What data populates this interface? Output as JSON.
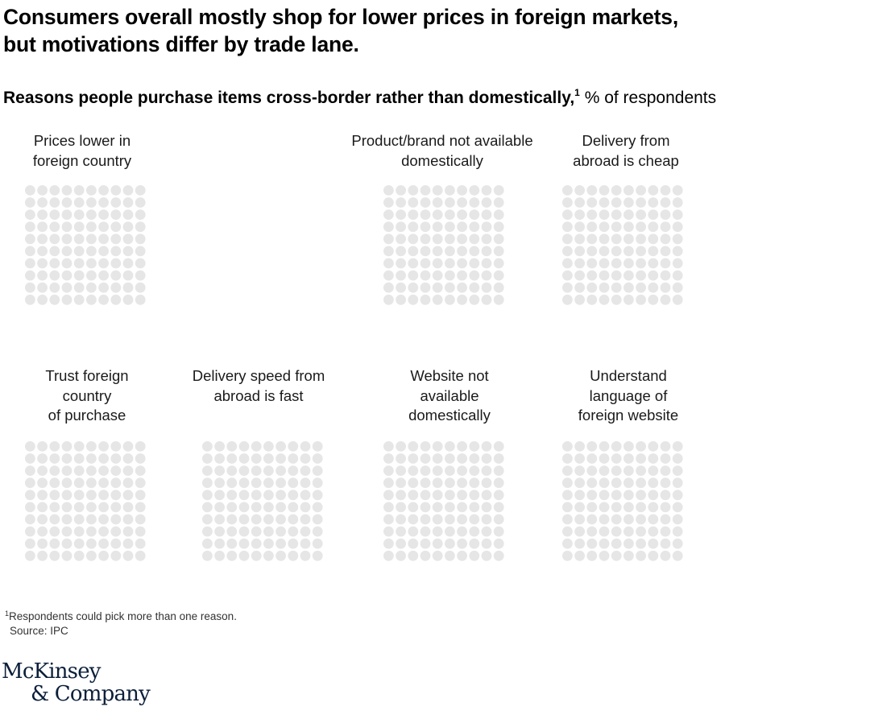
{
  "title_line1": "Consumers overall mostly shop for lower prices in foreign markets,",
  "title_line2": "but motivations differ by trade lane.",
  "subtitle_bold": "Reasons people purchase items cross-border rather than domestically,",
  "subtitle_sup": "1",
  "subtitle_unit": " % of respondents",
  "colors": {
    "dot_empty": "#e6e6e6",
    "text": "#000000",
    "logo": "#0b1f3a"
  },
  "chart_data": {
    "type": "waffle",
    "grid": {
      "rows": 10,
      "cols": 10,
      "total": 100
    },
    "panels": [
      {
        "id": "prices-lower",
        "label_lines": [
          "Prices lower in",
          "foreign country"
        ],
        "value": null
      },
      {
        "id": "product-brand",
        "label_lines": [
          "Product/brand not available",
          "domestically"
        ],
        "value": null
      },
      {
        "id": "delivery-cheap",
        "label_lines": [
          "Delivery from",
          "abroad is cheap"
        ],
        "value": null
      },
      {
        "id": "trust-foreign",
        "label_lines": [
          "Trust foreign",
          "country",
          "of purchase"
        ],
        "value": null
      },
      {
        "id": "delivery-fast",
        "label_lines": [
          "Delivery speed from",
          "abroad is fast"
        ],
        "value": null
      },
      {
        "id": "website-not-available",
        "label_lines": [
          "Website not",
          "available",
          "domestically"
        ],
        "value": null
      },
      {
        "id": "understand-language",
        "label_lines": [
          "Understand",
          "language of",
          "foreign website"
        ],
        "value": null
      }
    ]
  },
  "footnote_sup": "1",
  "footnote_text": "Respondents could pick more than one reason.",
  "source": "Source: IPC",
  "logo_line1": "McKinsey",
  "logo_line2": "& Company"
}
